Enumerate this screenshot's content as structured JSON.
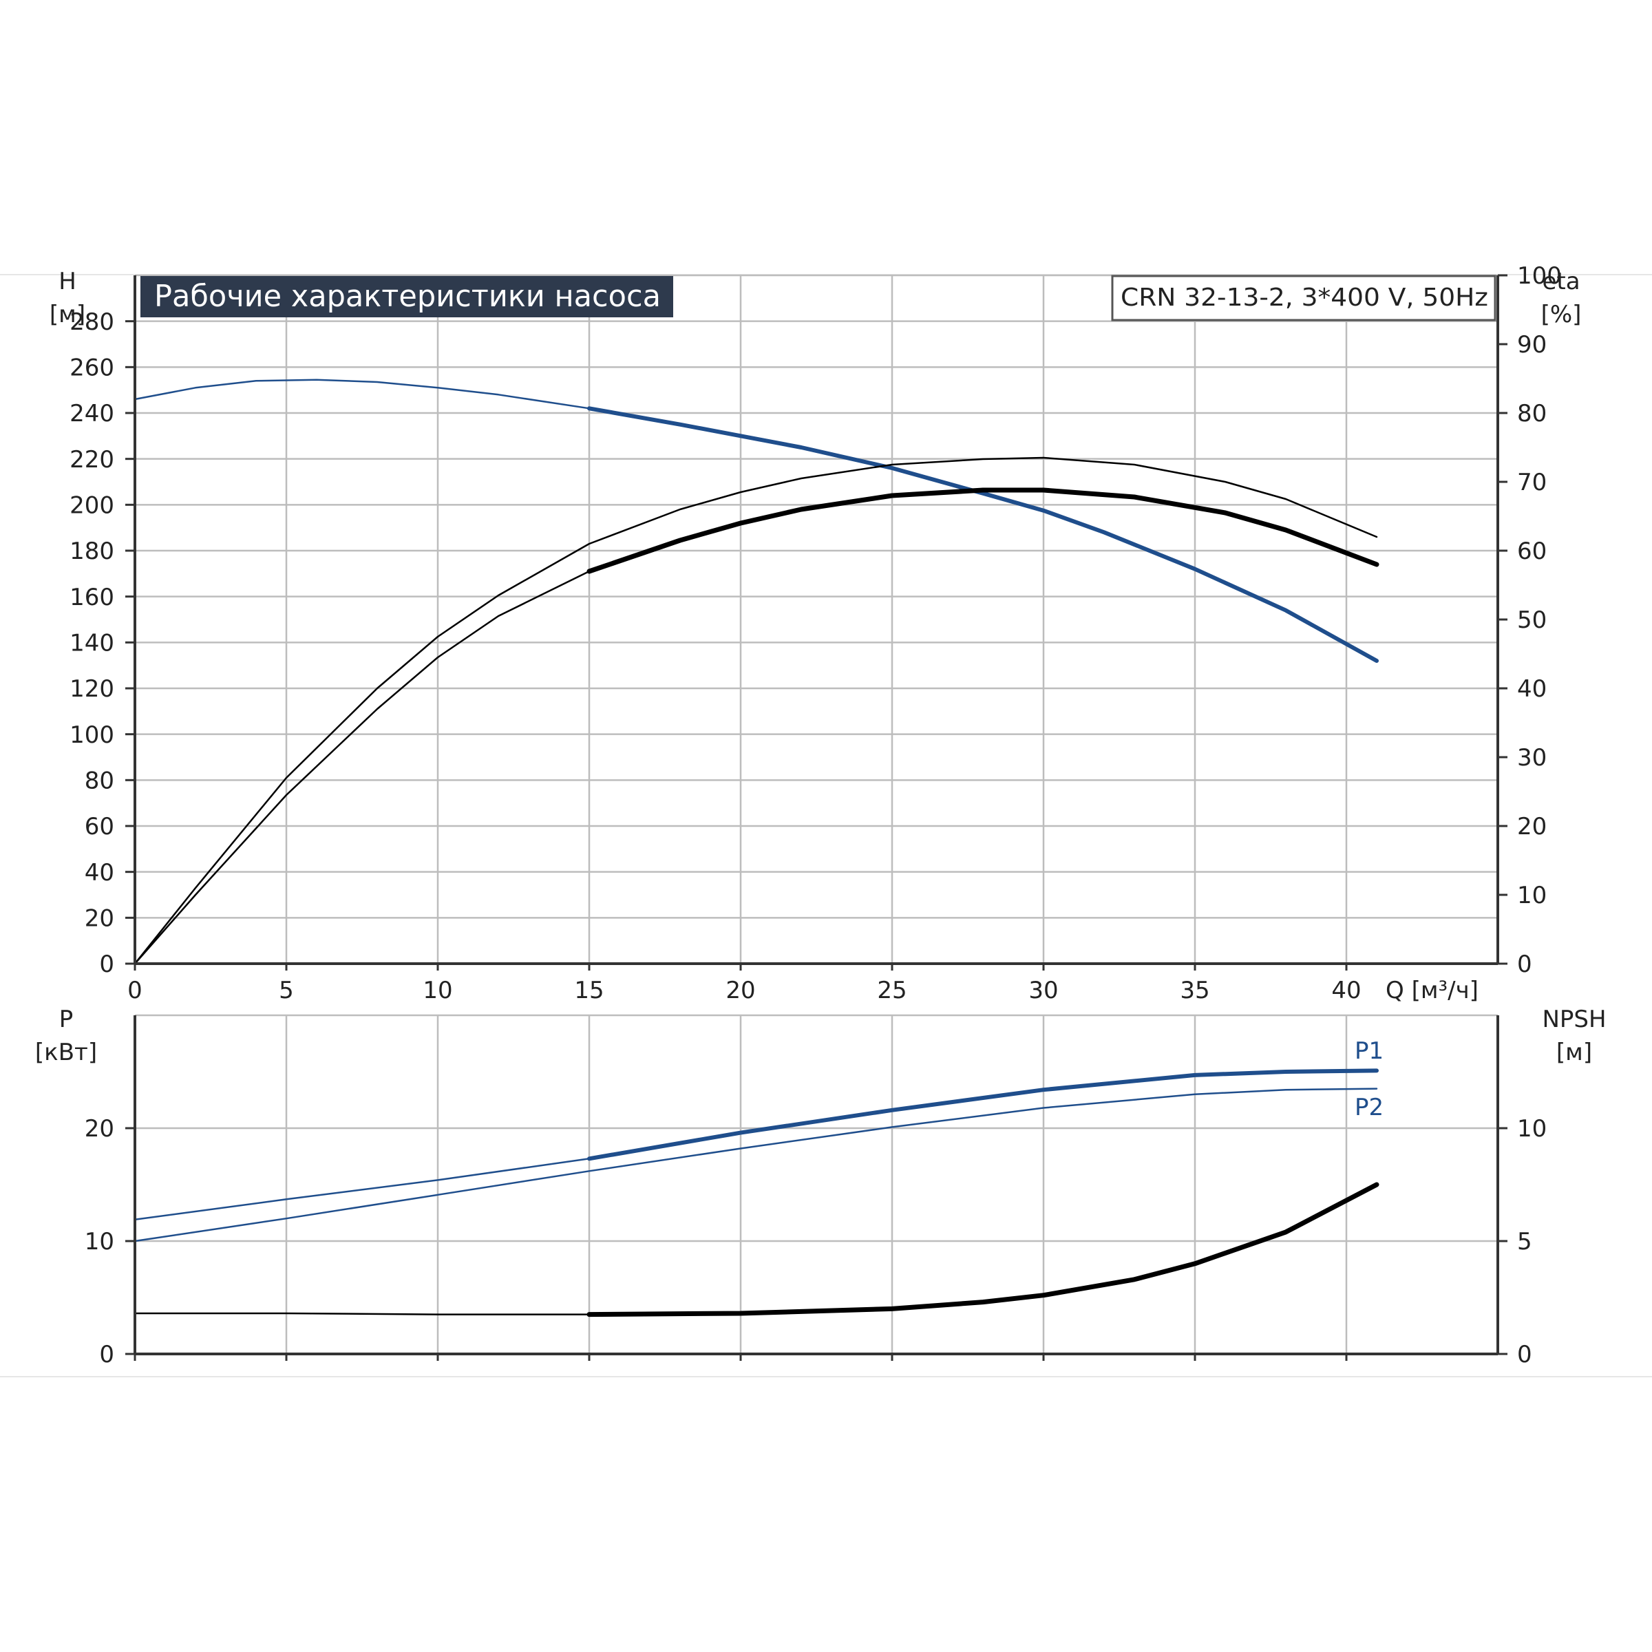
{
  "chart_data": [
    {
      "type": "line",
      "title": "Рабочие характеристики насоса",
      "model_label": "CRN 32-13-2, 3*400 V, 50Hz",
      "xlabel": "Q [м³/ч]",
      "ylabel_left": [
        "H",
        "[м]"
      ],
      "ylabel_right": [
        "eta",
        "[%]"
      ],
      "xlim": [
        0,
        45
      ],
      "ylim_left": [
        0,
        300
      ],
      "ylim_right": [
        0,
        100
      ],
      "xticks": [
        0,
        5,
        10,
        15,
        20,
        25,
        30,
        35,
        40
      ],
      "xtick_labels": [
        "0",
        "5",
        "10",
        "15",
        "20",
        "25",
        "30",
        "35",
        "40"
      ],
      "yticks_left": [
        0,
        20,
        40,
        60,
        80,
        100,
        120,
        140,
        160,
        180,
        200,
        220,
        240,
        260,
        280
      ],
      "ytick_labels_left": [
        "0",
        "20",
        "40",
        "60",
        "80",
        "100",
        "120",
        "140",
        "160",
        "180",
        "200",
        "220",
        "240",
        "260",
        "280"
      ],
      "yticks_right": [
        0,
        10,
        20,
        30,
        40,
        50,
        60,
        70,
        80,
        90,
        100
      ],
      "ytick_labels_right": [
        "0",
        "10",
        "20",
        "30",
        "40",
        "50",
        "60",
        "70",
        "80",
        "90",
        "100"
      ],
      "grid": true,
      "series": [
        {
          "axis": "left",
          "color": "#1f4e8c",
          "width": 2.5,
          "width_bold": 6,
          "bold_from": 15,
          "x": [
            0,
            2,
            4,
            6,
            8,
            10,
            12,
            15,
            18,
            20,
            22,
            25,
            28,
            30,
            32,
            35,
            38,
            41
          ],
          "y": [
            246,
            251,
            254,
            254.5,
            253.5,
            251,
            248,
            242,
            235,
            230,
            225,
            216,
            205,
            197.5,
            188,
            172,
            154,
            132
          ]
        },
        {
          "axis": "right",
          "color": "#000000",
          "width": 2.5,
          "x": [
            0,
            2,
            5,
            8,
            10,
            12,
            15,
            18,
            20,
            22,
            25,
            28,
            30,
            33,
            36,
            38,
            41
          ],
          "y": [
            0,
            11,
            27,
            40,
            47.5,
            53.5,
            61,
            66,
            68.5,
            70.5,
            72.5,
            73.3,
            73.5,
            72.5,
            70,
            67.5,
            62
          ]
        },
        {
          "axis": "right",
          "color": "#000000",
          "width": 2.5,
          "width_bold": 7,
          "bold_from": 15,
          "x": [
            0,
            2,
            5,
            8,
            10,
            12,
            15,
            18,
            20,
            22,
            25,
            28,
            30,
            33,
            36,
            38,
            41
          ],
          "y": [
            0,
            10,
            24.5,
            37,
            44.5,
            50.5,
            57,
            61.5,
            64,
            66,
            68,
            68.8,
            68.8,
            67.8,
            65.5,
            63,
            58
          ]
        }
      ]
    },
    {
      "type": "line",
      "ylabel_left": [
        "P",
        "[кВт]"
      ],
      "ylabel_right": [
        "NPSH",
        "[м]"
      ],
      "xlim": [
        0,
        45
      ],
      "ylim_left": [
        0,
        30
      ],
      "ylim_right": [
        0,
        15
      ],
      "xticks": [
        0,
        5,
        10,
        15,
        20,
        25,
        30,
        35,
        40
      ],
      "yticks_left": [
        0,
        10,
        20
      ],
      "ytick_labels_left": [
        "0",
        "10",
        "20"
      ],
      "yticks_right": [
        0,
        5,
        10
      ],
      "ytick_labels_right": [
        "0",
        "5",
        "10"
      ],
      "grid": true,
      "series": [
        {
          "name": "P1",
          "axis": "left",
          "color": "#1f4e8c",
          "width": 2.5,
          "width_bold": 6,
          "bold_from": 15,
          "x": [
            0,
            5,
            10,
            15,
            20,
            25,
            30,
            35,
            38,
            41
          ],
          "y": [
            11.9,
            13.7,
            15.4,
            17.3,
            19.6,
            21.6,
            23.4,
            24.7,
            25.0,
            25.1
          ]
        },
        {
          "name": "P2",
          "axis": "left",
          "color": "#1f4e8c",
          "width": 2.5,
          "x": [
            0,
            5,
            10,
            15,
            20,
            25,
            30,
            35,
            38,
            41
          ],
          "y": [
            10.0,
            12.0,
            14.1,
            16.2,
            18.2,
            20.1,
            21.8,
            23.0,
            23.4,
            23.5
          ]
        },
        {
          "name": "NPSH",
          "axis": "right",
          "color": "#000000",
          "width": 2.5,
          "width_bold": 7,
          "bold_from": 15,
          "x": [
            0,
            5,
            10,
            15,
            20,
            25,
            28,
            30,
            33,
            35,
            38,
            41
          ],
          "y": [
            1.8,
            1.8,
            1.75,
            1.75,
            1.8,
            2.0,
            2.3,
            2.6,
            3.3,
            4.0,
            5.4,
            7.5
          ]
        }
      ]
    }
  ]
}
